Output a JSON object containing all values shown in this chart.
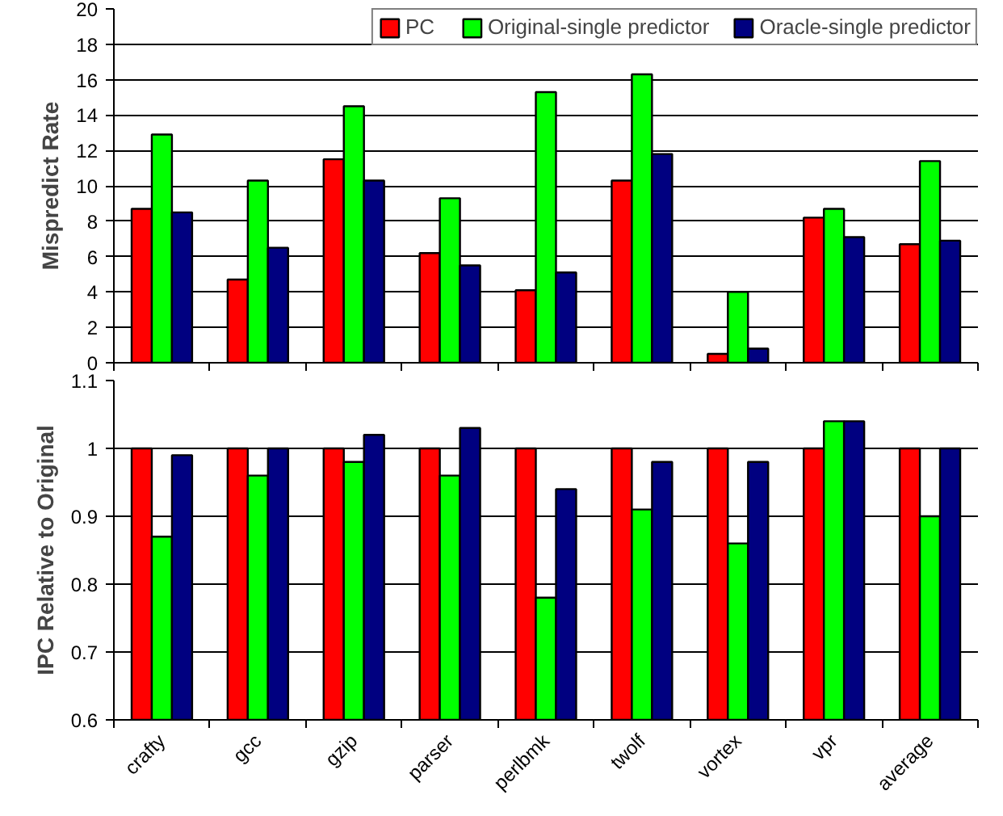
{
  "chart_data": [
    {
      "type": "bar",
      "ylabel": "Mispredict Rate",
      "categories": [
        null,
        null,
        null,
        null,
        null,
        null,
        null,
        null,
        null
      ],
      "series": [
        {
          "name": "PC",
          "color": "#ff0000",
          "values": [
            8.7,
            4.7,
            11.5,
            6.2,
            4.1,
            10.3,
            0.5,
            8.2,
            6.7
          ]
        },
        {
          "name": "Original-single predictor",
          "color": "#00ff00",
          "values": [
            12.9,
            10.3,
            14.5,
            9.3,
            15.3,
            16.3,
            4.0,
            8.7,
            11.4
          ]
        },
        {
          "name": "Oracle-single predictor",
          "color": "#000080",
          "values": [
            8.5,
            6.5,
            10.3,
            5.5,
            5.1,
            11.8,
            0.8,
            7.1,
            6.9
          ]
        }
      ],
      "ylim": [
        0,
        20
      ],
      "yticks": [
        0,
        2,
        4,
        6,
        8,
        10,
        12,
        14,
        16,
        18,
        20
      ],
      "grid": "y",
      "legend": "top right",
      "tick_labels": "y"
    },
    {
      "type": "bar",
      "ylabel": "IPC Relative to Original",
      "categories": [
        "crafty",
        "gcc",
        "gzip",
        "parser",
        "perlbmk",
        "twolf",
        "vortex",
        "vpr",
        "average"
      ],
      "series": [
        {
          "color": "#ff0000",
          "values": [
            1,
            1,
            1,
            1,
            1,
            1,
            1,
            1,
            1
          ]
        },
        {
          "color": "#00ff00",
          "values": [
            0.87,
            0.96,
            0.98,
            0.96,
            0.78,
            0.91,
            0.86,
            1.04,
            0.9
          ]
        },
        {
          "color": "#000080",
          "values": [
            0.99,
            1.0,
            1.02,
            1.03,
            0.94,
            0.98,
            0.98,
            1.04,
            1.0
          ]
        }
      ],
      "ylim": [
        0.6,
        1.1
      ],
      "yticks": [
        0.6,
        0.7,
        0.8,
        0.9,
        1,
        1.1
      ],
      "grid": "y"
    }
  ]
}
